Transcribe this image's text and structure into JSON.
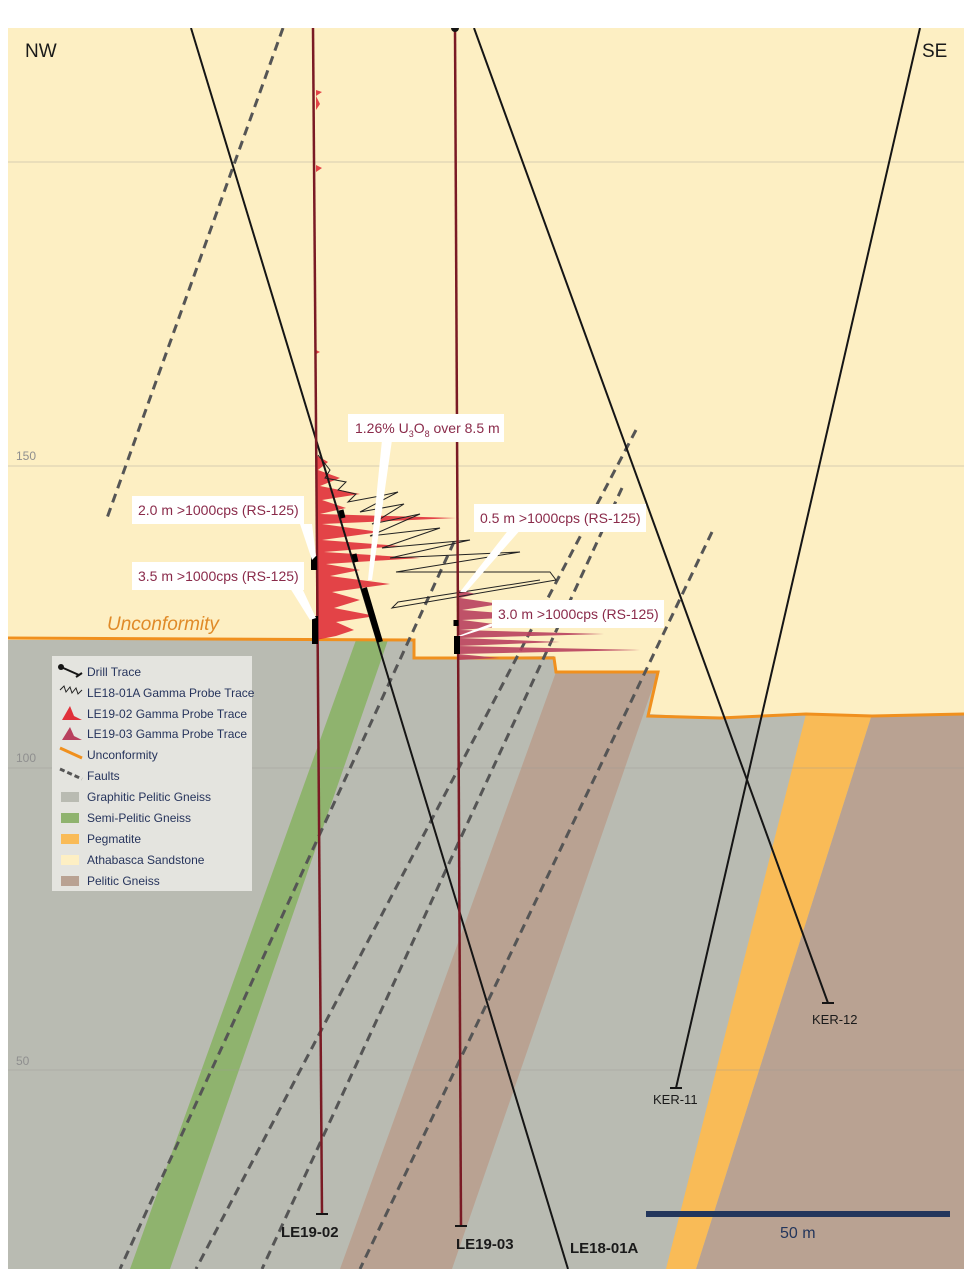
{
  "orientation": {
    "left": "NW",
    "right": "SE"
  },
  "elevations": [
    "150",
    "100",
    "50"
  ],
  "unconformity_label": "Unconformity",
  "callouts": {
    "main": {
      "prefix": "1.26% U",
      "sub1": "3",
      "mid": "O",
      "sub2": "8",
      "suffix": " over 8.5 m"
    },
    "c1": "2.0 m >1000cps (RS-125)",
    "c2": "3.5 m >1000cps (RS-125)",
    "c3": "0.5 m >1000cps (RS-125)",
    "c4": "3.0 m >1000cps (RS-125)"
  },
  "drill_holes": {
    "le19_02": "LE19-02",
    "le19_03": "LE19-03",
    "le18_01a": "LE18-01A",
    "ker_11": "KER-11",
    "ker_12": "KER-12"
  },
  "scale_bar": "50 m",
  "legend": [
    {
      "key": "drill",
      "label": "Drill Trace"
    },
    {
      "key": "gamma01a",
      "label": "LE18-01A Gamma Probe Trace"
    },
    {
      "key": "gamma02",
      "label": "LE19-02 Gamma Probe Trace"
    },
    {
      "key": "gamma03",
      "label": "LE19-03 Gamma Probe Trace"
    },
    {
      "key": "unconf",
      "label": "Unconformity"
    },
    {
      "key": "faults",
      "label": "Faults"
    },
    {
      "key": "gpg",
      "label": "Graphitic Pelitic Gneiss"
    },
    {
      "key": "spg",
      "label": "Semi-Pelitic Gneiss"
    },
    {
      "key": "peg",
      "label": "Pegmatite"
    },
    {
      "key": "ath",
      "label": "Athabasca Sandstone"
    },
    {
      "key": "pel",
      "label": "Pelitic Gneiss"
    }
  ],
  "colors": {
    "sandstone": "#fdefc3",
    "graphitic": "#b9bbb2",
    "semi_pelitic": "#8fb36e",
    "pegmatite": "#f9bb57",
    "pelitic": "#b9a292",
    "unconformity": "#f0901e",
    "gamma02": "#e0303a",
    "gamma03": "#b8405e",
    "scale": "#23365c"
  }
}
